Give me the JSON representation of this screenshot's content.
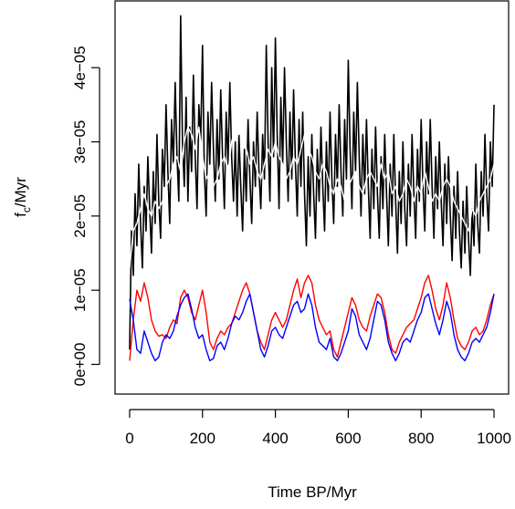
{
  "chart_data": {
    "type": "line",
    "title": "",
    "xlabel": "Time BP/Myr",
    "ylabel_main": "f",
    "ylabel_sub": "c",
    "ylabel_rest": "/Myr",
    "xlim": [
      -40,
      1040
    ],
    "ylim": [
      -4e-06,
      4.9e-05
    ],
    "x_ticks": [
      0,
      200,
      400,
      600,
      800,
      1000
    ],
    "x_tick_labels": [
      "0",
      "200",
      "400",
      "600",
      "800",
      "1000"
    ],
    "y_ticks": [
      0,
      1e-05,
      2e-05,
      3e-05,
      4e-05
    ],
    "y_tick_labels": [
      "0e+00",
      "1e−05",
      "2e−05",
      "3e−05",
      "4e−05"
    ],
    "grid": false,
    "legend": "none",
    "colors": {
      "noisy": "#000000",
      "smooth": "#ffffff",
      "red": "#ff0000",
      "blue": "#0000ff"
    },
    "series": [
      {
        "key": "noisy",
        "values_y": [
          2e-06,
          1.8e-05,
          1.2e-05,
          2.3e-05,
          1.6e-05,
          2.7e-05,
          1.9e-05,
          1.3e-05,
          2.4e-05,
          1.8e-05,
          2.8e-05,
          2.1e-05,
          1.5e-05,
          2.6e-05,
          1.9e-05,
          3.1e-05,
          2.2e-05,
          1.7e-05,
          2.9e-05,
          2.4e-05,
          3.5e-05,
          2.6e-05,
          1.9e-05,
          3.3e-05,
          2.7e-05,
          3.8e-05,
          2.8e-05,
          2.2e-05,
          4.7e-05,
          3e-05,
          2.4e-05,
          3.6e-05,
          2.2e-05,
          3.2e-05,
          2.6e-05,
          3.9e-05,
          2.8e-05,
          2.1e-05,
          3.5e-05,
          3e-05,
          4.3e-05,
          2.6e-05,
          2e-05,
          3.4e-05,
          2.7e-05,
          3.8e-05,
          2.9e-05,
          2.2e-05,
          3.3e-05,
          2.5e-05,
          3.7e-05,
          2.8e-05,
          2.1e-05,
          3.4e-05,
          2.7e-05,
          3.8e-05,
          2.8e-05,
          2.2e-05,
          3e-05,
          2e-05,
          3.1e-05,
          2.4e-05,
          1.8e-05,
          2.9e-05,
          2.2e-05,
          3.3e-05,
          2.5e-05,
          1.9e-05,
          3e-05,
          2.4e-05,
          3.4e-05,
          2.6e-05,
          2.1e-05,
          3.1e-05,
          2.5e-05,
          4.3e-05,
          3e-05,
          2.2e-05,
          4e-05,
          2.8e-05,
          4.4e-05,
          3.1e-05,
          2.1e-05,
          3.6e-05,
          2.7e-05,
          4e-05,
          3e-05,
          2.2e-05,
          3.4e-05,
          2.5e-05,
          3.7e-05,
          2.7e-05,
          2e-05,
          3.3e-05,
          2.4e-05,
          3.4e-05,
          2.3e-05,
          1.6e-05,
          2.8e-05,
          2e-05,
          3.1e-05,
          2.3e-05,
          1.7e-05,
          2.9e-05,
          2.2e-05,
          3.2e-05,
          2.4e-05,
          1.8e-05,
          3e-05,
          2.2e-05,
          3.4e-05,
          2.5e-05,
          1.9e-05,
          3.1e-05,
          2.4e-05,
          3.5e-05,
          2.6e-05,
          2e-05,
          3.3e-05,
          2.5e-05,
          4.1e-05,
          2.9e-05,
          2.1e-05,
          3.4e-05,
          2.6e-05,
          3.8e-05,
          2.8e-05,
          2e-05,
          3.1e-05,
          2.3e-05,
          3.3e-05,
          2.4e-05,
          1.7e-05,
          2.9e-05,
          2.1e-05,
          3.2e-05,
          2.3e-05,
          1.7e-05,
          2.8e-05,
          2.1e-05,
          3.1e-05,
          2.3e-05,
          1.6e-05,
          2.7e-05,
          2e-05,
          3.1e-05,
          2.2e-05,
          1.5e-05,
          2.6e-05,
          1.9e-05,
          3e-05,
          2.1e-05,
          1.6e-05,
          2.7e-05,
          2e-05,
          3.1e-05,
          2.3e-05,
          1.7e-05,
          2.9e-05,
          2.2e-05,
          3.3e-05,
          2.4e-05,
          1.8e-05,
          3e-05,
          2.3e-05,
          3.3e-05,
          2.4e-05,
          1.7e-05,
          2.8e-05,
          2.1e-05,
          3e-05,
          2.2e-05,
          1.6e-05,
          2.7e-05,
          1.9e-05,
          2.8e-05,
          2e-05,
          1.4e-05,
          2.4e-05,
          1.7e-05,
          2.6e-05,
          1.8e-05,
          1.3e-05,
          2.2e-05,
          1.5e-05,
          2.4e-05,
          1.7e-05,
          1.2e-05,
          2.1e-05,
          1.6e-05,
          2.7e-05,
          1.9e-05,
          1.5e-05,
          2.6e-05,
          2e-05,
          3.1e-05,
          2.3e-05,
          1.8e-05,
          3e-05,
          2.4e-05,
          3.5e-05
        ]
      },
      {
        "key": "smooth",
        "x": [
          0,
          10,
          20,
          30,
          40,
          50,
          60,
          70,
          80,
          90,
          100,
          110,
          120,
          130,
          140,
          150,
          160,
          170,
          180,
          190,
          200,
          210,
          220,
          230,
          240,
          250,
          260,
          270,
          280,
          290,
          300,
          310,
          320,
          330,
          340,
          350,
          360,
          370,
          380,
          390,
          400,
          410,
          420,
          430,
          440,
          450,
          460,
          470,
          480,
          490,
          500,
          510,
          520,
          530,
          540,
          550,
          560,
          570,
          580,
          590,
          600,
          610,
          620,
          630,
          640,
          650,
          660,
          670,
          680,
          690,
          700,
          710,
          720,
          730,
          740,
          750,
          760,
          770,
          780,
          790,
          800,
          810,
          820,
          830,
          840,
          850,
          860,
          870,
          880,
          890,
          900,
          910,
          920,
          930,
          940,
          950,
          960,
          970,
          980,
          990,
          1000
        ],
        "y": [
          1.3e-05,
          1.8e-05,
          1.9e-05,
          2.1e-05,
          2.3e-05,
          2.1e-05,
          2e-05,
          2.2e-05,
          2.1e-05,
          2.2e-05,
          2.4e-05,
          2.5e-05,
          2.7e-05,
          2.8e-05,
          2.6e-05,
          3e-05,
          3.2e-05,
          3.1e-05,
          2.9e-05,
          3.2e-05,
          2.8e-05,
          2.5e-05,
          2.6e-05,
          2.4e-05,
          2.5e-05,
          2.7e-05,
          2.8e-05,
          2.6e-05,
          3e-05,
          3.2e-05,
          3.1e-05,
          3.3e-05,
          2.9e-05,
          2.7e-05,
          2.8e-05,
          2.6e-05,
          2.5e-05,
          2.7e-05,
          2.9e-05,
          2.8e-05,
          3e-05,
          2.8e-05,
          2.7e-05,
          2.5e-05,
          2.6e-05,
          2.8e-05,
          2.7e-05,
          2.9e-05,
          3.1e-05,
          2.9e-05,
          2.8e-05,
          2.6e-05,
          2.5e-05,
          2.7e-05,
          2.6e-05,
          2.4e-05,
          2.3e-05,
          2.5e-05,
          2.4e-05,
          2.2e-05,
          2.4e-05,
          2.5e-05,
          2.6e-05,
          2.4e-05,
          2.3e-05,
          2.5e-05,
          2.6e-05,
          2.5e-05,
          2.4e-05,
          2.7e-05,
          2.5e-05,
          2.6e-05,
          2.3e-05,
          2.4e-05,
          2.2e-05,
          2.3e-05,
          2.5e-05,
          2.4e-05,
          2.2e-05,
          2.4e-05,
          2.3e-05,
          2.6e-05,
          2.4e-05,
          2.2e-05,
          2.3e-05,
          2.2e-05,
          2.4e-05,
          2.5e-05,
          2.4e-05,
          2.2e-05,
          2.1e-05,
          2e-05,
          1.9e-05,
          1.8e-05,
          2.1e-05,
          2e-05,
          2.2e-05,
          2.3e-05,
          2.4e-05,
          2.5e-05,
          2.7e-05
        ]
      },
      {
        "key": "red",
        "x": [
          0,
          10,
          20,
          30,
          40,
          50,
          60,
          70,
          80,
          90,
          100,
          110,
          120,
          130,
          140,
          150,
          160,
          170,
          180,
          190,
          200,
          210,
          220,
          230,
          240,
          250,
          260,
          270,
          280,
          290,
          300,
          310,
          320,
          330,
          340,
          350,
          360,
          370,
          380,
          390,
          400,
          410,
          420,
          430,
          440,
          450,
          460,
          470,
          480,
          490,
          500,
          510,
          520,
          530,
          540,
          550,
          560,
          570,
          580,
          590,
          600,
          610,
          620,
          630,
          640,
          650,
          660,
          670,
          680,
          690,
          700,
          710,
          720,
          730,
          740,
          750,
          760,
          770,
          780,
          790,
          800,
          810,
          820,
          830,
          840,
          850,
          860,
          870,
          880,
          890,
          900,
          910,
          920,
          930,
          940,
          950,
          960,
          970,
          980,
          990,
          1000
        ],
        "y": [
          5e-07,
          6e-06,
          1e-05,
          8.5e-06,
          1.1e-05,
          9e-06,
          6e-06,
          4.5e-06,
          3.8e-06,
          4e-06,
          3.5e-06,
          5e-06,
          6e-06,
          5.5e-06,
          9e-06,
          1e-05,
          9e-06,
          7e-06,
          6e-06,
          8e-06,
          1e-05,
          7e-06,
          3e-06,
          2e-06,
          3.5e-06,
          4.5e-06,
          4e-06,
          5e-06,
          5.5e-06,
          7e-06,
          8.5e-06,
          1e-05,
          1.1e-05,
          9.5e-06,
          7e-06,
          4.5e-06,
          3e-06,
          2e-06,
          4e-06,
          6e-06,
          7e-06,
          6e-06,
          5e-06,
          6e-06,
          8e-06,
          1e-05,
          1.15e-05,
          9e-06,
          1.1e-05,
          1.2e-05,
          1.1e-05,
          8e-06,
          6e-06,
          5e-06,
          4e-06,
          4.5e-06,
          2e-06,
          1e-06,
          3e-06,
          5e-06,
          7e-06,
          9e-06,
          8e-06,
          6e-06,
          5e-06,
          4.5e-06,
          6.5e-06,
          8e-06,
          9.5e-06,
          9e-06,
          7e-06,
          4e-06,
          2e-06,
          1.5e-06,
          3e-06,
          4e-06,
          5e-06,
          5.5e-06,
          6e-06,
          7.5e-06,
          9e-06,
          1.1e-05,
          1.2e-05,
          1e-05,
          7.5e-06,
          6e-06,
          8e-06,
          1.1e-05,
          9e-06,
          6e-06,
          3.5e-06,
          2.5e-06,
          2e-06,
          3e-06,
          4.5e-06,
          5e-06,
          4e-06,
          4.5e-06,
          6e-06,
          8e-06,
          9.5e-06
        ]
      },
      {
        "key": "blue",
        "x": [
          0,
          10,
          20,
          30,
          40,
          50,
          60,
          70,
          80,
          90,
          100,
          110,
          120,
          130,
          140,
          150,
          160,
          170,
          180,
          190,
          200,
          210,
          220,
          230,
          240,
          250,
          260,
          270,
          280,
          290,
          300,
          310,
          320,
          330,
          340,
          350,
          360,
          370,
          380,
          390,
          400,
          410,
          420,
          430,
          440,
          450,
          460,
          470,
          480,
          490,
          500,
          510,
          520,
          530,
          540,
          550,
          560,
          570,
          580,
          590,
          600,
          610,
          620,
          630,
          640,
          650,
          660,
          670,
          680,
          690,
          700,
          710,
          720,
          730,
          740,
          750,
          760,
          770,
          780,
          790,
          800,
          810,
          820,
          830,
          840,
          850,
          860,
          870,
          880,
          890,
          900,
          910,
          920,
          930,
          940,
          950,
          960,
          970,
          980,
          990,
          1000
        ],
        "y": [
          8.8e-06,
          6e-06,
          2e-06,
          1.5e-06,
          4.5e-06,
          3e-06,
          1.5e-06,
          5e-07,
          1e-06,
          3e-06,
          4e-06,
          3.5e-06,
          4.5e-06,
          6.5e-06,
          8e-06,
          9e-06,
          9.5e-06,
          7.5e-06,
          5e-06,
          3.5e-06,
          4e-06,
          2e-06,
          5e-07,
          8e-07,
          2.5e-06,
          3e-06,
          2e-06,
          3.5e-06,
          5.5e-06,
          6.5e-06,
          6e-06,
          7e-06,
          8.5e-06,
          9.5e-06,
          7e-06,
          4.5e-06,
          2e-06,
          1e-06,
          2.5e-06,
          4.5e-06,
          5e-06,
          4e-06,
          3.5e-06,
          5e-06,
          6.5e-06,
          8e-06,
          8.5e-06,
          7e-06,
          7.5e-06,
          9.5e-06,
          8e-06,
          5e-06,
          3e-06,
          2.5e-06,
          2e-06,
          3.5e-06,
          1e-06,
          5e-07,
          1.5e-06,
          3e-06,
          4.5e-06,
          7.5e-06,
          6.5e-06,
          4e-06,
          3e-06,
          2e-06,
          3.5e-06,
          6e-06,
          8.5e-06,
          8e-06,
          6e-06,
          3e-06,
          1.5e-06,
          5e-07,
          1.5e-06,
          3e-06,
          3.5e-06,
          3e-06,
          4.5e-06,
          6e-06,
          7e-06,
          9e-06,
          9.5e-06,
          7.5e-06,
          5.5e-06,
          4e-06,
          6e-06,
          8.5e-06,
          7e-06,
          4e-06,
          2e-06,
          1e-06,
          5e-07,
          1.5e-06,
          3e-06,
          3.5e-06,
          3e-06,
          4e-06,
          5e-06,
          7e-06,
          9.5e-06
        ]
      }
    ]
  }
}
